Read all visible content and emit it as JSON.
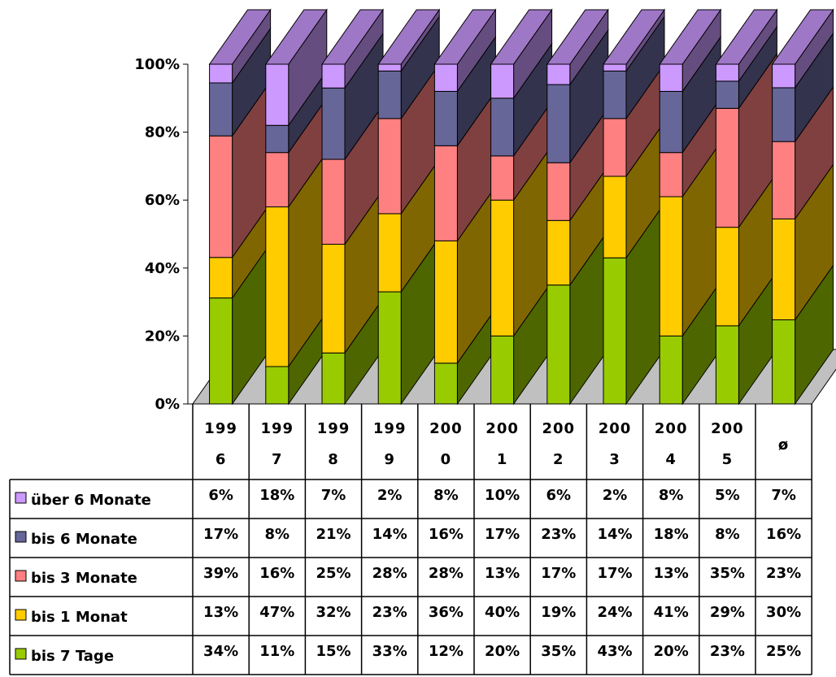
{
  "chart_data": {
    "type": "bar",
    "stacked": true,
    "percent_stacked": true,
    "three_d": true,
    "categories": [
      "1996",
      "1997",
      "1998",
      "1999",
      "2000",
      "2001",
      "2002",
      "2003",
      "2004",
      "2005",
      "ø"
    ],
    "category_labels": [
      [
        "199",
        "6"
      ],
      [
        "199",
        "7"
      ],
      [
        "199",
        "8"
      ],
      [
        "199",
        "9"
      ],
      [
        "200",
        "0"
      ],
      [
        "200",
        "1"
      ],
      [
        "200",
        "2"
      ],
      [
        "200",
        "3"
      ],
      [
        "200",
        "4"
      ],
      [
        "200",
        "5"
      ],
      [
        "ø"
      ]
    ],
    "series": [
      {
        "name": "bis 7 Tage",
        "color": "#99cc00",
        "values": [
          34,
          11,
          15,
          33,
          12,
          20,
          35,
          43,
          20,
          23,
          25
        ],
        "labels": [
          "34%",
          "11%",
          "15%",
          "33%",
          "12%",
          "20%",
          "35%",
          "43%",
          "20%",
          "23%",
          "25%"
        ]
      },
      {
        "name": "bis 1 Monat",
        "color": "#ffcc00",
        "values": [
          13,
          47,
          32,
          23,
          36,
          40,
          19,
          24,
          41,
          29,
          30
        ],
        "labels": [
          "13%",
          "47%",
          "32%",
          "23%",
          "36%",
          "40%",
          "19%",
          "24%",
          "41%",
          "29%",
          "30%"
        ]
      },
      {
        "name": "bis 3 Monate",
        "color": "#ff8080",
        "values": [
          39,
          16,
          25,
          28,
          28,
          13,
          17,
          17,
          13,
          35,
          23
        ],
        "labels": [
          "39%",
          "16%",
          "25%",
          "28%",
          "28%",
          "13%",
          "17%",
          "17%",
          "13%",
          "35%",
          "23%"
        ]
      },
      {
        "name": "bis 6 Monate",
        "color": "#666699",
        "values": [
          17,
          8,
          21,
          14,
          16,
          17,
          23,
          14,
          18,
          8,
          16
        ],
        "labels": [
          "17%",
          "8%",
          "21%",
          "14%",
          "16%",
          "17%",
          "23%",
          "14%",
          "18%",
          "8%",
          "16%"
        ]
      },
      {
        "name": "über 6 Monate",
        "color": "#cc99ff",
        "values": [
          6,
          18,
          7,
          2,
          8,
          10,
          6,
          2,
          8,
          5,
          7
        ],
        "labels": [
          "6%",
          "18%",
          "7%",
          "2%",
          "8%",
          "10%",
          "6%",
          "2%",
          "8%",
          "5%",
          "7%"
        ]
      }
    ],
    "y_axis": {
      "ticks": [
        0,
        20,
        40,
        60,
        80,
        100
      ],
      "tick_labels": [
        "0%",
        "20%",
        "40%",
        "60%",
        "80%",
        "100%"
      ],
      "ylim": [
        0,
        100
      ]
    },
    "data_table": {
      "row_order": [
        "über 6 Monate",
        "bis 6 Monate",
        "bis 3 Monate",
        "bis 1 Monat",
        "bis 7 Tage"
      ]
    },
    "floor_color": "#c0c0c0",
    "legend": "data-table-keys"
  }
}
